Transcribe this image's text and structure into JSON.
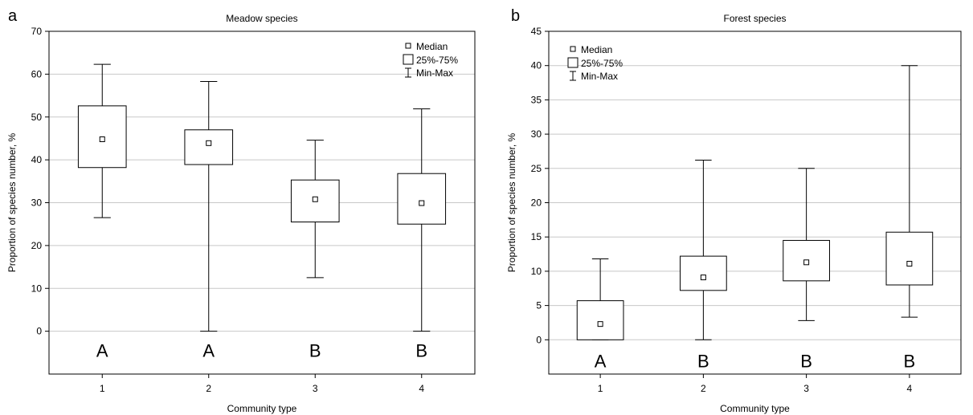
{
  "chart_data": [
    {
      "type": "box",
      "panel_label": "a",
      "title": "Meadow species",
      "xlabel": "Community type",
      "ylabel": "Proportion of species number, %",
      "ylim": [
        -10,
        70
      ],
      "yticks": [
        0,
        10,
        20,
        30,
        40,
        50,
        60,
        70
      ],
      "categories": [
        "1",
        "2",
        "3",
        "4"
      ],
      "grid": "horizontal",
      "legend": {
        "position": "top-right",
        "entries": [
          "Median",
          "25%-75%",
          "Min-Max"
        ]
      },
      "boxes": [
        {
          "category": "1",
          "min": 26.5,
          "q1": 38.2,
          "median": 44.8,
          "q3": 52.6,
          "max": 62.3,
          "letter": "A"
        },
        {
          "category": "2",
          "min": 0,
          "q1": 38.9,
          "median": 43.9,
          "q3": 47.0,
          "max": 58.3,
          "letter": "A"
        },
        {
          "category": "3",
          "min": 12.5,
          "q1": 25.5,
          "median": 30.8,
          "q3": 35.3,
          "max": 44.6,
          "letter": "B"
        },
        {
          "category": "4",
          "min": 0,
          "q1": 25.0,
          "median": 29.9,
          "q3": 36.8,
          "max": 51.9,
          "letter": "B"
        }
      ]
    },
    {
      "type": "box",
      "panel_label": "b",
      "title": "Forest species",
      "xlabel": "Community type",
      "ylabel": "Proportion of species number, %",
      "ylim": [
        -5,
        45
      ],
      "yticks": [
        0,
        5,
        10,
        15,
        20,
        25,
        30,
        35,
        40,
        45
      ],
      "categories": [
        "1",
        "2",
        "3",
        "4"
      ],
      "grid": "horizontal",
      "legend": {
        "position": "top-left",
        "entries": [
          "Median",
          "25%-75%",
          "Min-Max"
        ]
      },
      "boxes": [
        {
          "category": "1",
          "min": 0,
          "q1": 0,
          "median": 2.3,
          "q3": 5.7,
          "max": 11.8,
          "letter": "A"
        },
        {
          "category": "2",
          "min": 0,
          "q1": 7.2,
          "median": 9.1,
          "q3": 12.2,
          "max": 26.2,
          "letter": "B"
        },
        {
          "category": "3",
          "min": 2.8,
          "q1": 8.6,
          "median": 11.3,
          "q3": 14.5,
          "max": 25.0,
          "letter": "B"
        },
        {
          "category": "4",
          "min": 3.3,
          "q1": 8.0,
          "median": 11.1,
          "q3": 15.7,
          "max": 40.0,
          "letter": "B"
        }
      ]
    }
  ]
}
